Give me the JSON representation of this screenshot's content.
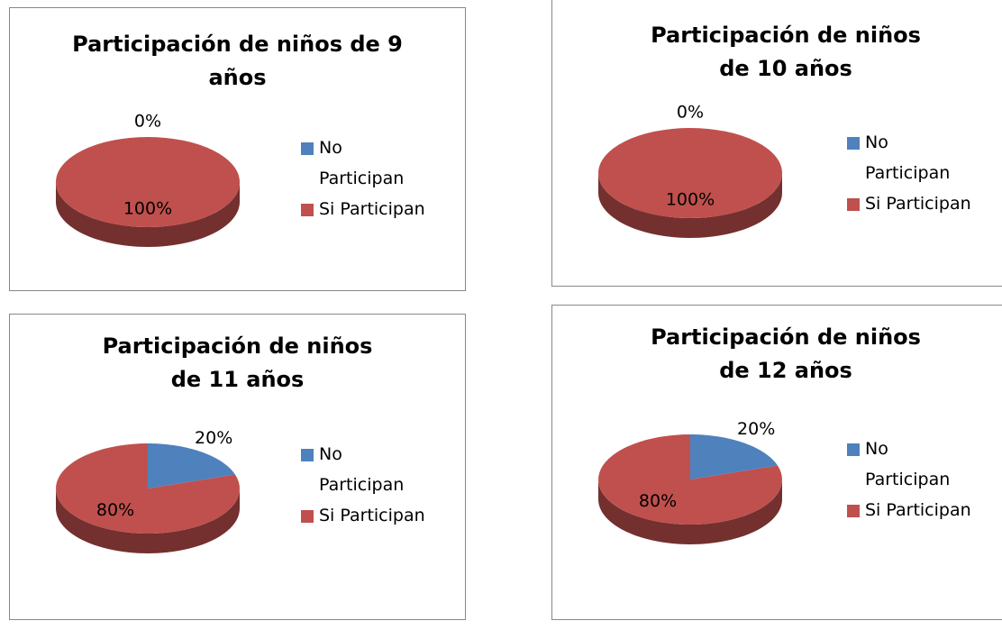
{
  "chart_data": [
    {
      "type": "pie",
      "title": "Participación de niños de 9 años",
      "categories": [
        "No Participan",
        "Si Participan"
      ],
      "values": [
        0,
        100
      ],
      "value_labels": [
        "0%",
        "100%"
      ],
      "colors": [
        "#4f81bd",
        "#c0504d"
      ],
      "legend": "right"
    },
    {
      "type": "pie",
      "title": "Participación de niños de 10 años",
      "categories": [
        "No Participan",
        "Si Participan"
      ],
      "values": [
        0,
        100
      ],
      "value_labels": [
        "0%",
        "100%"
      ],
      "colors": [
        "#4f81bd",
        "#c0504d"
      ],
      "legend": "right"
    },
    {
      "type": "pie",
      "title": "Participación de niños de 11 años",
      "categories": [
        "No Participan",
        "Si Participan"
      ],
      "values": [
        20,
        80
      ],
      "value_labels": [
        "20%",
        "80%"
      ],
      "colors": [
        "#4f81bd",
        "#c0504d"
      ],
      "legend": "right"
    },
    {
      "type": "pie",
      "title": "Participación de niños de 12 años",
      "categories": [
        "No Participan",
        "Si Participan"
      ],
      "values": [
        20,
        80
      ],
      "value_labels": [
        "20%",
        "80%"
      ],
      "colors": [
        "#4f81bd",
        "#c0504d"
      ],
      "legend": "right"
    }
  ]
}
